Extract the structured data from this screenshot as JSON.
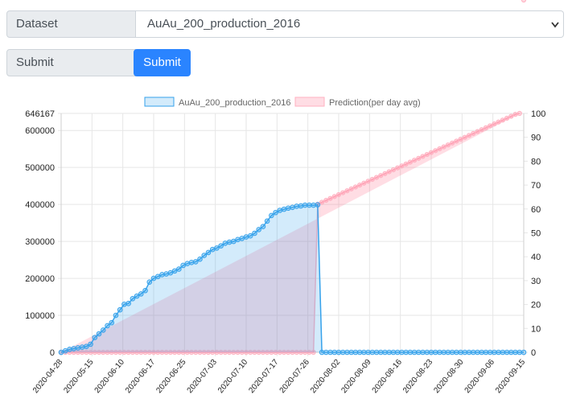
{
  "form": {
    "dataset_label": "Dataset",
    "dataset_value": "AuAu_200_production_2016",
    "submit_label": "Submit",
    "submit_button": "Submit"
  },
  "colors": {
    "series_line": "#36a2eb",
    "series_fill": "rgba(54,162,235,0.22)",
    "prediction_line": "#ffb1c1",
    "prediction_fill": "rgba(255,99,132,0.22)",
    "button": "#2a84ff"
  },
  "chart_data": {
    "type": "line",
    "legend": [
      "AuAu_200_production_2016",
      "Prediction(per day avg)"
    ],
    "legend_position": "top",
    "grid": true,
    "y_left": {
      "min": 0,
      "max": 646167,
      "ticks": [
        0,
        100000,
        200000,
        300000,
        400000,
        500000,
        600000,
        646167
      ]
    },
    "y_right": {
      "min": 0,
      "max": 100,
      "ticks": [
        0,
        10,
        20,
        30,
        40,
        50,
        60,
        70,
        80,
        90,
        100
      ]
    },
    "x_tick_labels": [
      "2020-04-28",
      "2020-05-15",
      "2020-06-10",
      "2020-06-17",
      "2020-06-25",
      "2020-07-03",
      "2020-07-10",
      "2020-07-17",
      "2020-07-26",
      "2020-08-02",
      "2020-08-09",
      "2020-08-16",
      "2020-08-23",
      "2020-08-30",
      "2020-09-06",
      "2020-09-15"
    ],
    "series": [
      {
        "name": "AuAu_200_production_2016",
        "axis": "left",
        "values": [
          0,
          4000,
          8000,
          10000,
          12000,
          14000,
          16000,
          22000,
          40000,
          50000,
          60000,
          72000,
          80000,
          100000,
          115000,
          130000,
          132000,
          145000,
          152000,
          158000,
          167000,
          190000,
          200000,
          205000,
          210000,
          212000,
          215000,
          220000,
          225000,
          235000,
          240000,
          243000,
          245000,
          252000,
          262000,
          270000,
          278000,
          282000,
          288000,
          295000,
          298000,
          300000,
          305000,
          308000,
          312000,
          315000,
          322000,
          332000,
          340000,
          355000,
          370000,
          378000,
          384000,
          387000,
          390000,
          392000,
          395000,
          396000,
          398000,
          398000,
          398000,
          399000,
          0,
          0,
          0,
          0,
          0,
          0,
          0,
          0,
          0,
          0,
          0,
          0,
          0,
          0,
          0,
          0,
          0,
          0,
          0,
          0,
          0,
          0,
          0,
          0,
          0,
          0,
          0,
          0,
          0,
          0,
          0,
          0,
          0,
          0,
          0,
          0,
          0,
          0,
          0,
          0,
          0,
          0,
          0,
          0,
          0,
          0,
          0,
          0,
          0
        ]
      },
      {
        "name": "Prediction(per day avg)",
        "axis": "right",
        "values": [
          0,
          0,
          0,
          0,
          0,
          0,
          0,
          0,
          0,
          0,
          0,
          0,
          0,
          0,
          0,
          0,
          0,
          0,
          0,
          0,
          0,
          0,
          0,
          0,
          0,
          0,
          0,
          0,
          0,
          0,
          0,
          0,
          0,
          0,
          0,
          0,
          0,
          0,
          0,
          0,
          0,
          0,
          0,
          0,
          0,
          0,
          0,
          0,
          0,
          0,
          0,
          0,
          0,
          0,
          0,
          0,
          0,
          0,
          0,
          0,
          0,
          62,
          62.8,
          63.6,
          64.4,
          65.2,
          66,
          66.8,
          67.6,
          68.4,
          69.2,
          70,
          70.8,
          71.6,
          72.4,
          73.2,
          74,
          74.8,
          75.6,
          76.4,
          77.2,
          78,
          78.8,
          79.6,
          80.4,
          81.2,
          82,
          82.8,
          83.6,
          84.4,
          85.2,
          86,
          86.8,
          87.6,
          88.4,
          89.2,
          90,
          90.8,
          91.6,
          92.4,
          93.2,
          94,
          94.8,
          95.6,
          96.4,
          97.2,
          98,
          98.8,
          99.6,
          100
        ]
      }
    ]
  }
}
